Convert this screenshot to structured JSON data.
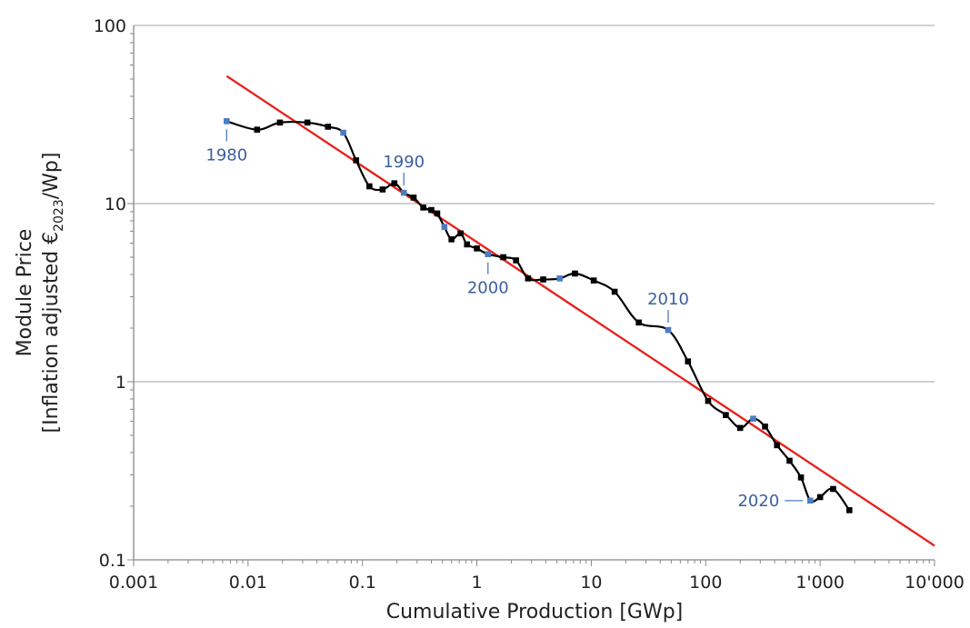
{
  "chart_data": {
    "type": "line",
    "title": "",
    "xlabel": "Cumulative Production [GWp]",
    "ylabel_line1": "Module Price",
    "ylabel_line2_prefix": "[Inflation adjusted €",
    "ylabel_line2_sub": "2023",
    "ylabel_line2_suffix": "/Wp]",
    "xscale": "log",
    "yscale": "log",
    "xlim": [
      0.001,
      10000
    ],
    "ylim": [
      0.1,
      100
    ],
    "grid": "horizontal",
    "x_ticks": [
      {
        "value": 0.001,
        "label": "0.001"
      },
      {
        "value": 0.01,
        "label": "0.01"
      },
      {
        "value": 0.1,
        "label": "0.1"
      },
      {
        "value": 1,
        "label": "1"
      },
      {
        "value": 10,
        "label": "10"
      },
      {
        "value": 100,
        "label": "100"
      },
      {
        "value": 1000,
        "label": "1'000"
      },
      {
        "value": 10000,
        "label": "10'000"
      }
    ],
    "y_ticks": [
      {
        "value": 0.1,
        "label": "0.1"
      },
      {
        "value": 1,
        "label": "1"
      },
      {
        "value": 10,
        "label": "10"
      },
      {
        "value": 100,
        "label": "100"
      }
    ],
    "series": [
      {
        "color": "#000000",
        "highlight_color": "#4a7cc4",
        "points": [
          {
            "x": 0.0065,
            "y": 29,
            "highlight": true
          },
          {
            "x": 0.012,
            "y": 26
          },
          {
            "x": 0.019,
            "y": 28.5
          },
          {
            "x": 0.033,
            "y": 28.5
          },
          {
            "x": 0.05,
            "y": 27
          },
          {
            "x": 0.068,
            "y": 25,
            "highlight": true
          },
          {
            "x": 0.088,
            "y": 17.5
          },
          {
            "x": 0.115,
            "y": 12.5
          },
          {
            "x": 0.15,
            "y": 12
          },
          {
            "x": 0.19,
            "y": 13
          },
          {
            "x": 0.23,
            "y": 11.5,
            "highlight": true
          },
          {
            "x": 0.28,
            "y": 10.8
          },
          {
            "x": 0.34,
            "y": 9.5
          },
          {
            "x": 0.4,
            "y": 9.2
          },
          {
            "x": 0.45,
            "y": 8.8
          },
          {
            "x": 0.52,
            "y": 7.4,
            "highlight": true
          },
          {
            "x": 0.6,
            "y": 6.3
          },
          {
            "x": 0.72,
            "y": 6.8
          },
          {
            "x": 0.82,
            "y": 5.9
          },
          {
            "x": 1.0,
            "y": 5.6
          },
          {
            "x": 1.25,
            "y": 5.2,
            "highlight": true
          },
          {
            "x": 1.7,
            "y": 5.0
          },
          {
            "x": 2.2,
            "y": 4.8
          },
          {
            "x": 2.8,
            "y": 3.8
          },
          {
            "x": 3.8,
            "y": 3.75
          },
          {
            "x": 5.3,
            "y": 3.8,
            "highlight": true
          },
          {
            "x": 7.2,
            "y": 4.05
          },
          {
            "x": 10.5,
            "y": 3.7
          },
          {
            "x": 16,
            "y": 3.2
          },
          {
            "x": 26,
            "y": 2.15
          },
          {
            "x": 47,
            "y": 1.95,
            "highlight": true
          },
          {
            "x": 70,
            "y": 1.3
          },
          {
            "x": 105,
            "y": 0.78
          },
          {
            "x": 150,
            "y": 0.65
          },
          {
            "x": 200,
            "y": 0.55
          },
          {
            "x": 260,
            "y": 0.62,
            "highlight": true
          },
          {
            "x": 330,
            "y": 0.56
          },
          {
            "x": 420,
            "y": 0.44
          },
          {
            "x": 540,
            "y": 0.36
          },
          {
            "x": 680,
            "y": 0.29
          },
          {
            "x": 820,
            "y": 0.215,
            "highlight": true
          },
          {
            "x": 1000,
            "y": 0.225
          },
          {
            "x": 1300,
            "y": 0.25
          },
          {
            "x": 1800,
            "y": 0.19
          }
        ]
      }
    ],
    "fit_line": {
      "color": "#e8201a",
      "x": [
        0.0065,
        10000
      ],
      "y": [
        52,
        0.12
      ]
    },
    "annotations": [
      {
        "text": "1980",
        "x": 0.0065,
        "y": 29,
        "position": "below"
      },
      {
        "text": "1990",
        "x": 0.23,
        "y": 11.5,
        "position": "above"
      },
      {
        "text": "2000",
        "x": 1.25,
        "y": 5.2,
        "position": "below"
      },
      {
        "text": "2010",
        "x": 47,
        "y": 1.95,
        "position": "above"
      },
      {
        "text": "2020",
        "x": 820,
        "y": 0.215,
        "position": "left"
      }
    ]
  }
}
